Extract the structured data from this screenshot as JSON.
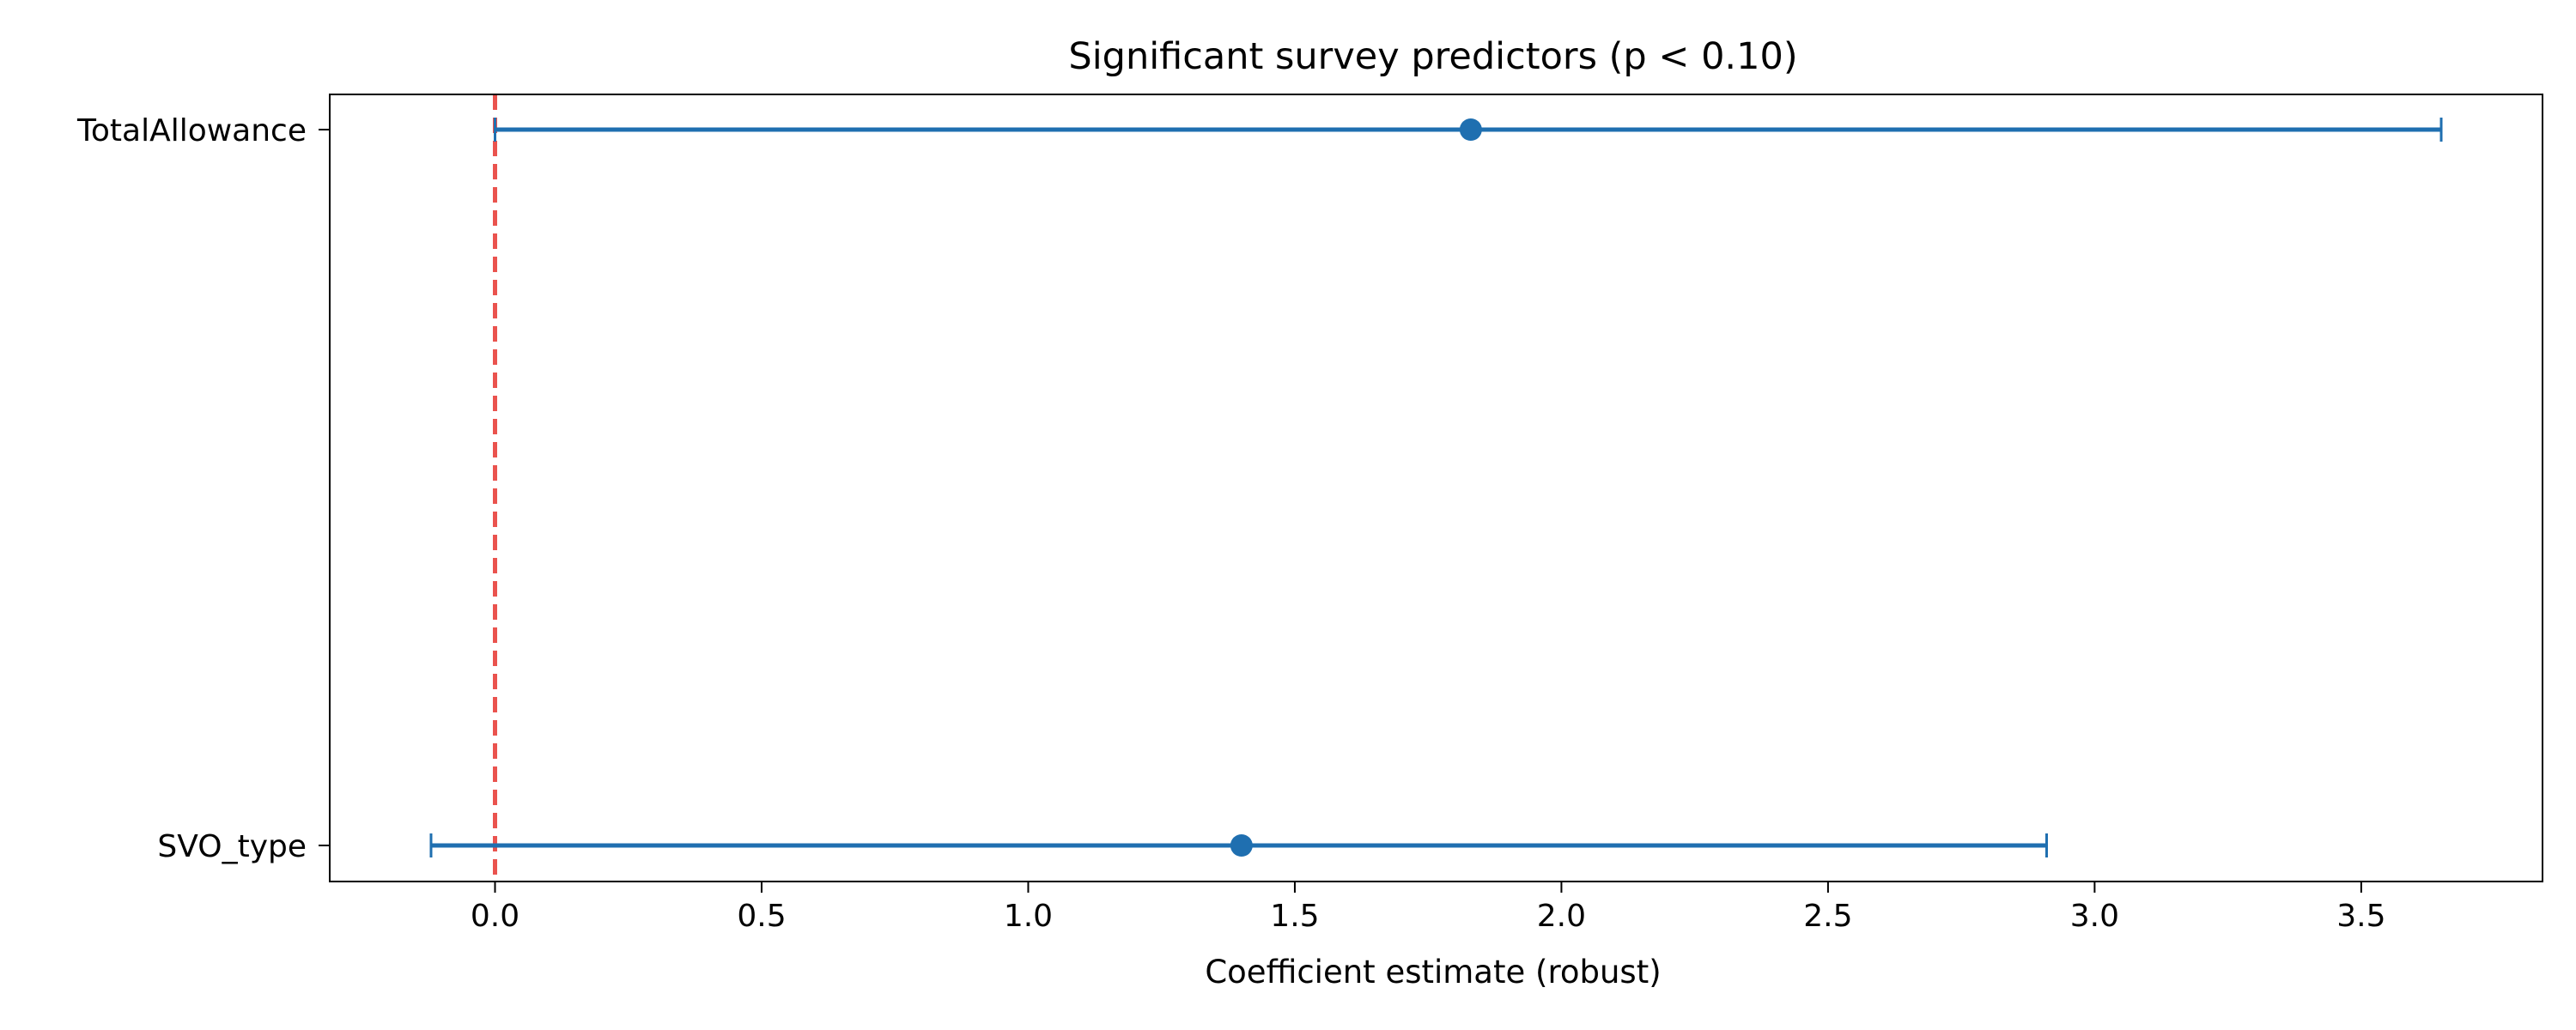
{
  "chart_data": {
    "type": "scatter",
    "title": "Significant survey predictors (p < 0.10)",
    "xlabel": "Coefficient estimate (robust)",
    "ylabel": "",
    "xlim": [
      -0.31,
      3.84
    ],
    "xticks": [
      0.0,
      0.5,
      1.0,
      1.5,
      2.0,
      2.5,
      3.0,
      3.5
    ],
    "xtick_labels": [
      "0.0",
      "0.5",
      "1.0",
      "1.5",
      "2.0",
      "2.5",
      "3.0",
      "3.5"
    ],
    "categories": [
      "TotalAllowance",
      "SVO_type"
    ],
    "points": [
      {
        "label": "TotalAllowance",
        "estimate": 1.83,
        "ci_low": 0.0,
        "ci_high": 3.65
      },
      {
        "label": "SVO_type",
        "estimate": 1.4,
        "ci_low": -0.12,
        "ci_high": 2.91
      }
    ],
    "reference_line": {
      "x": 0,
      "style": "dashed",
      "color": "#e8413b"
    },
    "series_color": "#1f6fb0",
    "grid": false,
    "legend": "none"
  }
}
